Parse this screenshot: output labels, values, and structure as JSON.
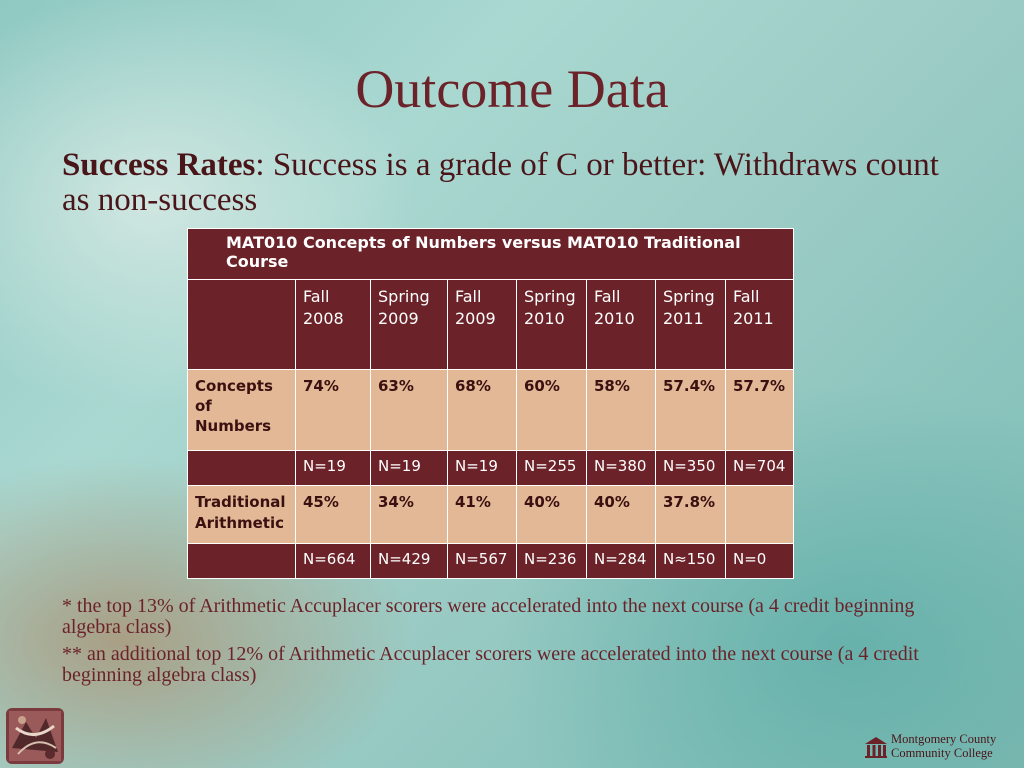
{
  "slide": {
    "title": "Outcome Data",
    "subtitle_bold": "Success Rates",
    "subtitle_rest": ": Success is a grade of C or better: Withdraws count as non-success"
  },
  "table": {
    "caption": "MAT010 Concepts of Numbers versus MAT010 Traditional Course",
    "terms": [
      [
        "Fall",
        "2008"
      ],
      [
        "Spring",
        "2009"
      ],
      [
        "Fall",
        "2009"
      ],
      [
        "Spring",
        "2010"
      ],
      [
        "Fall",
        "2010"
      ],
      [
        "Spring",
        "2011"
      ],
      [
        "Fall",
        "2011"
      ]
    ],
    "concepts_label": [
      "Concepts of",
      "Numbers"
    ],
    "concepts_rates": [
      "74%",
      "63%",
      "68%",
      "60%",
      "58%",
      "57.4%",
      "57.7%"
    ],
    "concepts_n": [
      "N=19",
      "N=19",
      "N=19",
      "N=255",
      "N=380",
      "N=350",
      "N=704"
    ],
    "traditional_label": [
      "Traditional",
      "Arithmetic"
    ],
    "traditional_rates": [
      "45%",
      "34%",
      "41%",
      "40%",
      "40%",
      "37.8%",
      ""
    ],
    "traditional_n": [
      "N=664",
      "N=429",
      "N=567",
      "N=236",
      "N=284",
      "N≈150",
      "N=0"
    ]
  },
  "footnotes": {
    "note1": "* the top 13% of Arithmetic Accuplacer scorers were accelerated into the next course (a 4 credit beginning algebra class)",
    "note2": "** an additional top 12% of Arithmetic Accuplacer scorers were   accelerated into the next course (a 4 credit beginning algebra class)"
  },
  "branding": {
    "college_line1": "Montgomery County",
    "college_line2": "Community College",
    "brand_color": "#6b2229",
    "table_light_color": "#e2b896"
  }
}
